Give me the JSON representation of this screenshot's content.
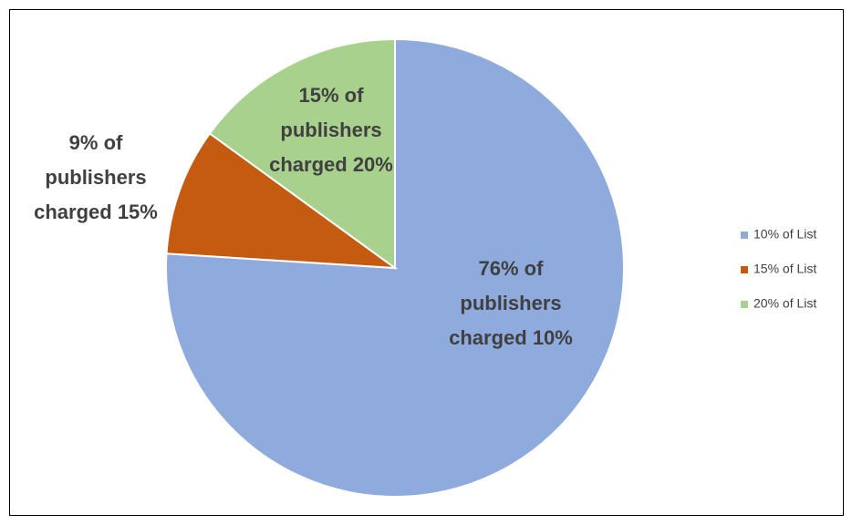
{
  "chart_data": {
    "type": "pie",
    "categories": [
      "10% of List",
      "15% of List",
      "20% of List"
    ],
    "values": [
      76,
      9,
      15
    ],
    "value_labels": [
      "76% of publishers charged 10%",
      "9% of publishers charged 15%",
      "15% of publishers charged 20%"
    ],
    "colors": [
      "#8faadc",
      "#c55a11",
      "#a9d18e"
    ],
    "legend": "right"
  }
}
